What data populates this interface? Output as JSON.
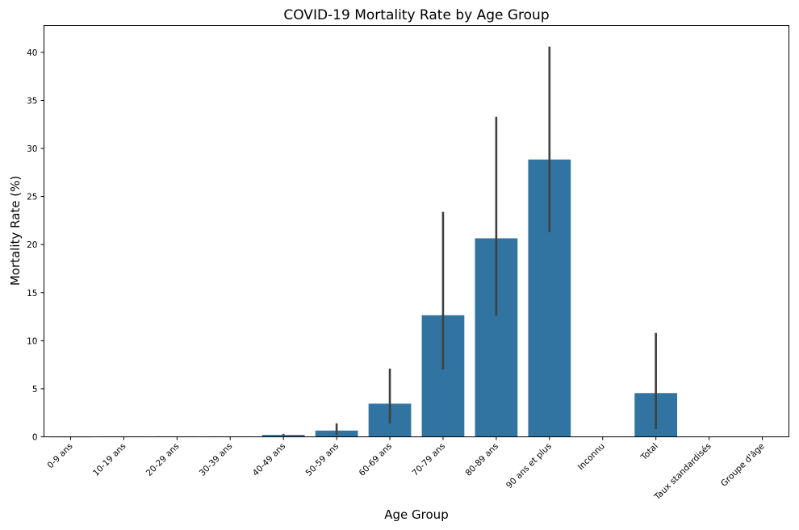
{
  "chart_data": {
    "type": "bar",
    "title": "COVID-19 Mortality Rate by Age Group",
    "xlabel": "Age Group",
    "ylabel": "Mortality Rate (%)",
    "ylim": [
      0,
      42.8
    ],
    "yticks": [
      0,
      5,
      10,
      15,
      20,
      25,
      30,
      35,
      40
    ],
    "grid": false,
    "categories": [
      "0-9 ans",
      "10-19 ans",
      "20-29 ans",
      "30-39 ans",
      "40-49 ans",
      "50-59 ans",
      "60-69 ans",
      "70-79 ans",
      "80-89 ans",
      "90 ans et plus",
      "Inconnu",
      "Total",
      "Taux standardisés",
      "Groupe d'âge"
    ],
    "values": [
      0.0,
      0.05,
      0.05,
      0.05,
      0.2,
      0.65,
      3.45,
      12.65,
      20.65,
      28.85,
      null,
      4.55,
      null,
      null
    ],
    "error_bars": [
      null,
      null,
      null,
      null,
      [
        0.1,
        0.3
      ],
      [
        0.2,
        1.4
      ],
      [
        1.4,
        7.1
      ],
      [
        7.0,
        23.4
      ],
      [
        12.6,
        33.3
      ],
      [
        21.3,
        40.6
      ],
      null,
      [
        0.8,
        10.8
      ],
      null,
      null
    ],
    "bar_color": "#3274a1",
    "error_color": "#404040"
  }
}
